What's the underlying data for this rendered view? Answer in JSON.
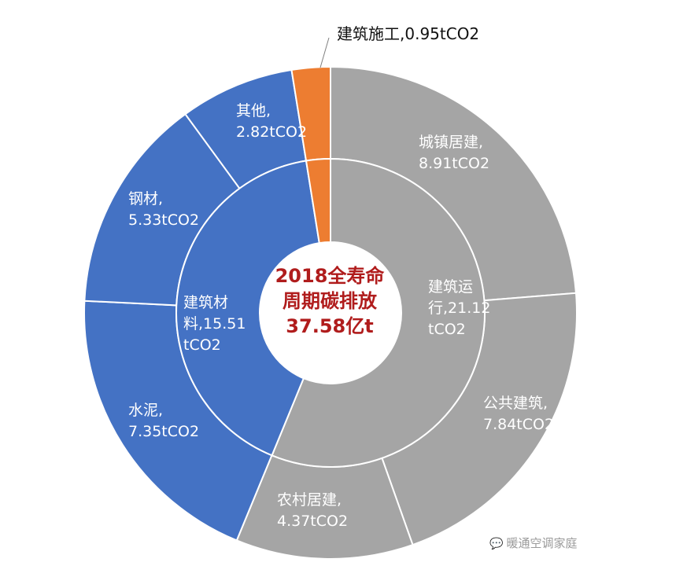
{
  "chart_data": {
    "type": "sunburst",
    "center": {
      "lines": [
        "2018全寿命",
        "周期碳排放",
        "37.58亿t"
      ]
    },
    "unit": "tCO2",
    "inner_ring": [
      {
        "label_lines": [
          "建筑运",
          "行,21.12",
          "tCO2"
        ],
        "value": 21.12,
        "color": "#a5a5a5"
      },
      {
        "label_lines": [
          "建筑材",
          "料,15.51",
          "tCO2"
        ],
        "value": 15.51,
        "color": "#4472c4"
      },
      {
        "label_lines": [
          "建筑施工,0.95tCO2"
        ],
        "value": 0.95,
        "color": "#ed7d31"
      }
    ],
    "outer_ring": [
      {
        "label_lines": [
          "城镇居建,",
          "8.91tCO2"
        ],
        "value": 8.91,
        "parent": 0,
        "color": "#a5a5a5"
      },
      {
        "label_lines": [
          "公共建筑,",
          "7.84tCO2"
        ],
        "value": 7.84,
        "parent": 0,
        "color": "#a5a5a5"
      },
      {
        "label_lines": [
          "农村居建,",
          "4.37tCO2"
        ],
        "value": 4.37,
        "parent": 0,
        "color": "#a5a5a5"
      },
      {
        "label_lines": [
          "水泥,",
          "7.35tCO2"
        ],
        "value": 7.35,
        "parent": 1,
        "color": "#4472c4"
      },
      {
        "label_lines": [
          "钢材,",
          "5.33tCO2"
        ],
        "value": 5.33,
        "parent": 1,
        "color": "#4472c4"
      },
      {
        "label_lines": [
          "其他,",
          "2.82tCO2"
        ],
        "value": 2.82,
        "parent": 1,
        "color": "#4472c4"
      },
      {
        "label_lines": [
          "建筑施工,0.95tCO2"
        ],
        "value": 0.95,
        "parent": 2,
        "color": "#ed7d31"
      }
    ]
  },
  "watermark": {
    "icon": "wechat-icon",
    "text": "暖通空调家庭"
  }
}
